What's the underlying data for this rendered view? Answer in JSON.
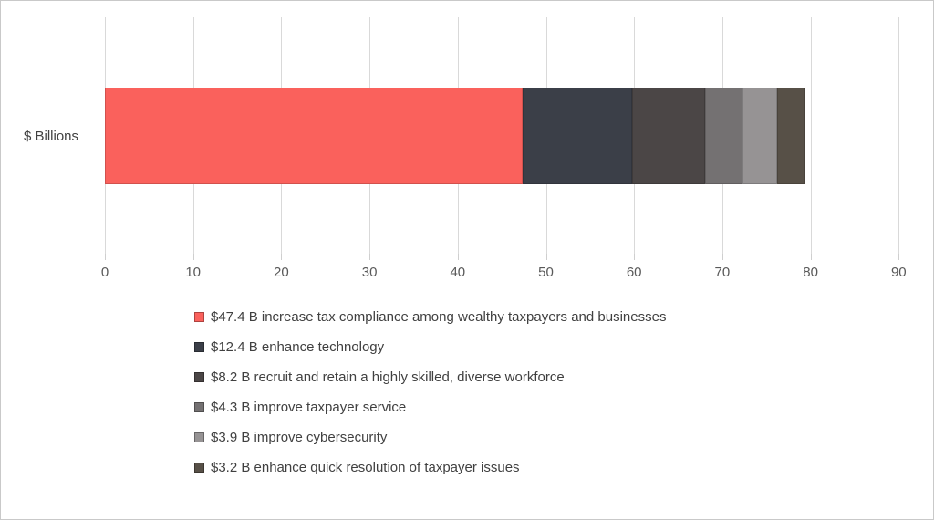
{
  "chart_data": {
    "type": "bar",
    "orientation": "horizontal",
    "stacked": true,
    "title": "",
    "ylabel": "$ Billions",
    "xlabel": "",
    "xlim": [
      0,
      90
    ],
    "x_ticks": [
      0,
      10,
      20,
      30,
      40,
      50,
      60,
      70,
      80,
      90
    ],
    "grid": true,
    "legend_position": "bottom-left",
    "categories": [
      "$ Billions"
    ],
    "series": [
      {
        "name": "increase tax compliance among wealthy taxpayers and businesses",
        "value": 47.4,
        "legend_label": "$47.4 B increase tax compliance among wealthy taxpayers and businesses",
        "color": "#FA615C"
      },
      {
        "name": "enhance technology",
        "value": 12.4,
        "legend_label": "$12.4 B enhance technology",
        "color": "#3B3F48"
      },
      {
        "name": "recruit and retain a highly skilled, diverse workforce",
        "value": 8.2,
        "legend_label": "$8.2 B recruit and retain a highly skilled, diverse workforce",
        "color": "#4B4646"
      },
      {
        "name": "improve taxpayer service",
        "value": 4.3,
        "legend_label": "$4.3 B improve taxpayer service",
        "color": "#747172"
      },
      {
        "name": "improve cybersecurity",
        "value": 3.9,
        "legend_label": "$3.9 B improve cybersecurity",
        "color": "#969394"
      },
      {
        "name": "enhance quick resolution of taxpayer issues",
        "value": 3.2,
        "legend_label": "$3.2 B enhance quick resolution of taxpayer issues",
        "color": "#575047"
      }
    ]
  },
  "colors": {
    "background": "#FFFFFF",
    "canvas_border": "#C9C9C9",
    "gridline": "#D9D9D9",
    "axis_text": "#595959",
    "label_text": "#404040"
  }
}
